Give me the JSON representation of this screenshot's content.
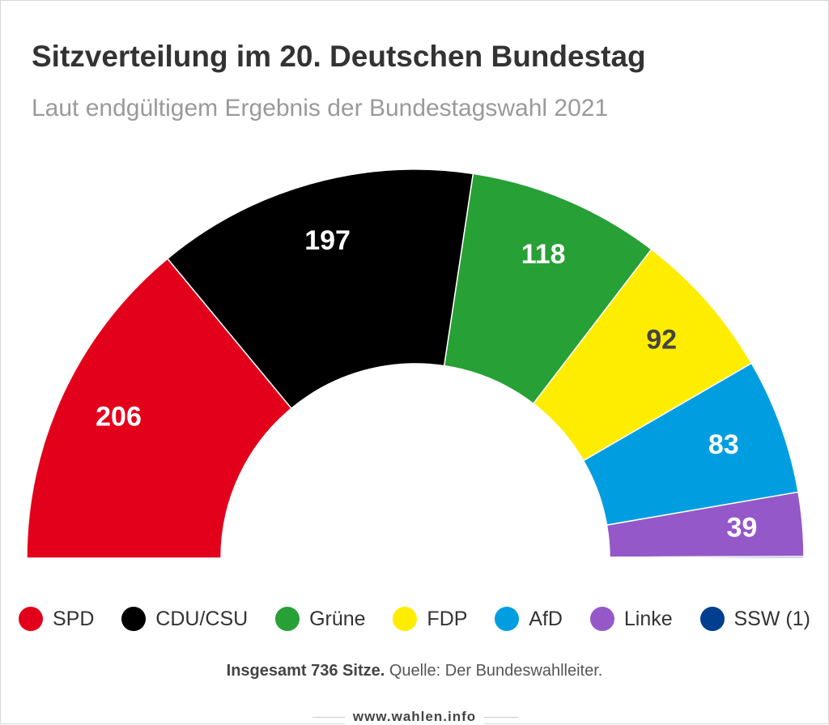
{
  "chart_data": {
    "type": "pie",
    "shape": "semicircle",
    "title": "Sitzverteilung im 20. Deutschen Bundestag",
    "subtitle": "Laut endgültigem Ergebnis der Bundestagswahl 2021",
    "categories": [
      "SPD",
      "CDU/CSU",
      "Grüne",
      "FDP",
      "AfD",
      "Linke",
      "SSW (1)"
    ],
    "values": [
      206,
      197,
      118,
      92,
      83,
      39,
      1
    ],
    "colors": [
      "#e3001b",
      "#000000",
      "#27a035",
      "#ffed00",
      "#009ee0",
      "#9558c8",
      "#003f8f"
    ],
    "note": "Insgesamt 736 Sitze.",
    "source": "Quelle: Der Bundeswahlleiter.",
    "watermark": "www.wahlen.info"
  }
}
